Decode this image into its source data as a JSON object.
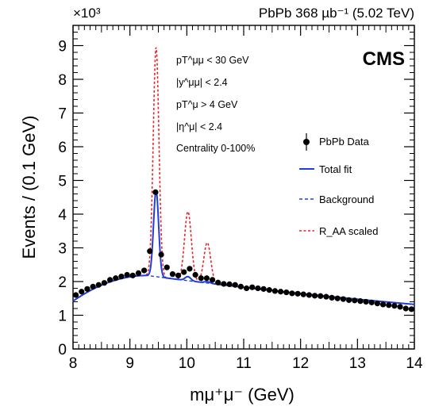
{
  "chart_data": {
    "type": "line",
    "header": "PbPb 368 µb⁻¹ (5.02 TeV)",
    "exponent_label": "×10³",
    "experiment_label": "CMS",
    "xlabel": "mμ⁺μ⁻ (GeV)",
    "ylabel": "Events / (0.1 GeV)",
    "xlim": [
      8,
      14
    ],
    "ylim": [
      0,
      9.6
    ],
    "y_scale_factor": 1000,
    "x_ticks": [
      8,
      9,
      10,
      11,
      12,
      13,
      14
    ],
    "y_ticks": [
      0,
      1,
      2,
      3,
      4,
      5,
      6,
      7,
      8,
      9
    ],
    "selection_cuts": [
      "pT^μμ < 30 GeV",
      "|y^μμ| < 2.4",
      "pT^μ > 4 GeV",
      "|η^μ| < 2.4",
      "Centrality 0-100%"
    ],
    "legend_position": "right",
    "legend": [
      {
        "label": "PbPb Data",
        "style": "marker"
      },
      {
        "label": "Total fit",
        "style": "solid",
        "color": "#1f3fd6"
      },
      {
        "label": "Background",
        "style": "dashed",
        "color": "#1f3fd6"
      },
      {
        "label": "R_AA scaled",
        "style": "dotted",
        "color": "#e8232a"
      }
    ],
    "data_points": {
      "x": [
        8.05,
        8.15,
        8.25,
        8.35,
        8.45,
        8.55,
        8.65,
        8.75,
        8.85,
        8.95,
        9.05,
        9.15,
        9.25,
        9.35,
        9.45,
        9.55,
        9.65,
        9.75,
        9.85,
        9.95,
        10.05,
        10.15,
        10.25,
        10.35,
        10.45,
        10.55,
        10.65,
        10.75,
        10.85,
        10.95,
        11.05,
        11.15,
        11.25,
        11.35,
        11.45,
        11.55,
        11.65,
        11.75,
        11.85,
        11.95,
        12.05,
        12.15,
        12.25,
        12.35,
        12.45,
        12.55,
        12.65,
        12.75,
        12.85,
        12.95,
        13.05,
        13.15,
        13.25,
        13.35,
        13.45,
        13.55,
        13.65,
        13.75,
        13.85,
        13.95
      ],
      "y": [
        1.6,
        1.7,
        1.78,
        1.85,
        1.9,
        1.96,
        2.05,
        2.1,
        2.15,
        2.2,
        2.18,
        2.25,
        2.33,
        2.9,
        4.65,
        2.8,
        2.42,
        2.22,
        2.18,
        2.28,
        2.38,
        2.2,
        2.1,
        2.1,
        2.05,
        1.97,
        1.93,
        1.92,
        1.9,
        1.85,
        1.8,
        1.83,
        1.8,
        1.78,
        1.75,
        1.72,
        1.7,
        1.68,
        1.65,
        1.64,
        1.62,
        1.6,
        1.58,
        1.57,
        1.55,
        1.52,
        1.5,
        1.48,
        1.45,
        1.44,
        1.42,
        1.4,
        1.38,
        1.35,
        1.32,
        1.3,
        1.28,
        1.25,
        1.2,
        1.18
      ]
    },
    "model": {
      "background": {
        "x0": 9.3,
        "peak": 2.18,
        "left_curvature": 0.45,
        "right_slope": 0.22,
        "right_curvature": 0.008
      },
      "total_fit_peaks": [
        {
          "mass": 9.46,
          "amplitude": 2.55,
          "width": 0.045
        },
        {
          "mass": 10.02,
          "amplitude": 0.12,
          "width": 0.05
        },
        {
          "mass": 10.36,
          "amplitude": 0.04,
          "width": 0.05
        }
      ],
      "raa_scaled_peaks": [
        {
          "mass": 9.46,
          "amplitude": 6.8,
          "width": 0.05
        },
        {
          "mass": 10.02,
          "amplitude": 2.05,
          "width": 0.06
        },
        {
          "mass": 10.36,
          "amplitude": 1.2,
          "width": 0.06
        }
      ]
    }
  }
}
